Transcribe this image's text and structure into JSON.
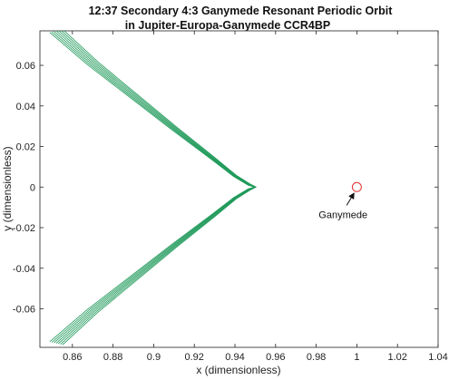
{
  "chart_data": {
    "type": "line",
    "title": "12:37 Secondary 4:3 Ganymede Resonant Periodic Orbit",
    "subtitle": "in Jupiter-Europa-Ganymede CCR4BP",
    "xlabel": "x (dimensionless)",
    "ylabel": "y (dimensionless)",
    "xlim": [
      0.844,
      1.04
    ],
    "ylim": [
      -0.079,
      0.077
    ],
    "xticks": [
      0.86,
      0.88,
      0.9,
      0.92,
      0.94,
      0.96,
      0.98,
      1,
      1.02,
      1.04
    ],
    "xtick_labels": [
      "0.86",
      "0.88",
      "0.9",
      "0.92",
      "0.94",
      "0.96",
      "0.98",
      "1",
      "1.02",
      "1.04"
    ],
    "yticks": [
      0.06,
      0.04,
      0.02,
      0,
      -0.02,
      -0.04,
      -0.06
    ],
    "ytick_labels": [
      "0.06",
      "0.04",
      "0.02",
      "0",
      "-0.02",
      "-0.04",
      "-0.06"
    ],
    "grid": false,
    "legend": "none",
    "series": [
      {
        "color": "#1f9a5a",
        "style": "multi-pass cusp trajectory",
        "passes": 7,
        "upper_branch": [
          {
            "x": 0.852,
            "y": 0.077
          },
          {
            "x": 0.87,
            "y": 0.061
          },
          {
            "x": 0.89,
            "y": 0.045
          },
          {
            "x": 0.91,
            "y": 0.029
          },
          {
            "x": 0.93,
            "y": 0.0135
          },
          {
            "x": 0.94,
            "y": 0.0055
          },
          {
            "x": 0.947,
            "y": 0.0012
          },
          {
            "x": 0.95,
            "y": 0
          }
        ],
        "lower_branch": [
          {
            "x": 0.95,
            "y": 0
          },
          {
            "x": 0.947,
            "y": -0.0012
          },
          {
            "x": 0.94,
            "y": -0.0055
          },
          {
            "x": 0.93,
            "y": -0.0135
          },
          {
            "x": 0.91,
            "y": -0.029
          },
          {
            "x": 0.89,
            "y": -0.045
          },
          {
            "x": 0.87,
            "y": -0.061
          },
          {
            "x": 0.852,
            "y": -0.077
          }
        ]
      }
    ],
    "body_marker": {
      "label": "Ganymede",
      "x": 1.0,
      "y": 0.0,
      "color": "#e03030"
    },
    "annotation": {
      "text": "Ganymede",
      "arrow_from": {
        "x": 0.995,
        "y": -0.009
      },
      "arrow_to": {
        "x": 0.9985,
        "y": -0.0032
      }
    },
    "colors": {
      "orbit": "#1f9a5a",
      "body": "#e03030",
      "axes": "#222222"
    }
  }
}
